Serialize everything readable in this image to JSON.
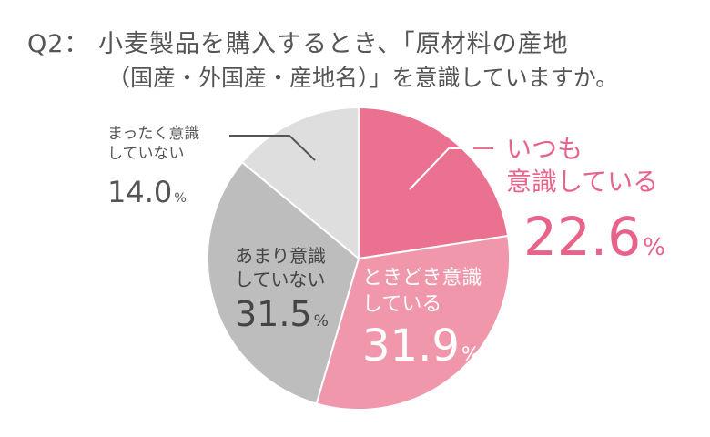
{
  "title_line1": "Q2： 小麦製品を購入するとき、「原材料の産地",
  "title_line2": "（国産・外国産・産地名）」を意識していますか。",
  "chart_data": {
    "type": "pie",
    "start": "top",
    "direction": "clockwise",
    "unit": "%",
    "slices": [
      {
        "label_line1": "いつも",
        "label_line2": "意識している",
        "value": 22.6,
        "value_text": "22.6",
        "color": "#ea7190"
      },
      {
        "label_line1": "ときどき意識",
        "label_line2": "している",
        "value": 31.9,
        "value_text": "31.9",
        "color": "#f197ac"
      },
      {
        "label_line1": "あまり意識",
        "label_line2": "していない",
        "value": 31.5,
        "value_text": "31.5",
        "color": "#bdbdbd"
      },
      {
        "label_line1": "まったく意識",
        "label_line2": "していない",
        "value": 14.0,
        "value_text": "14.0",
        "color": "#dedede"
      }
    ]
  }
}
